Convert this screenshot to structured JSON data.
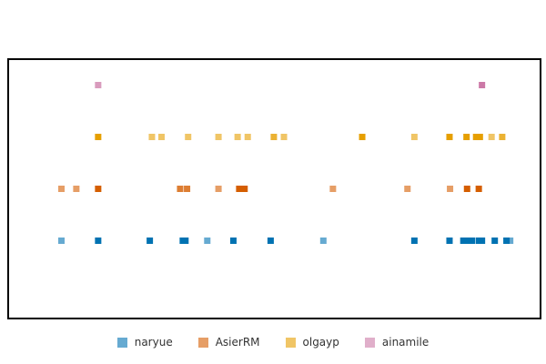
{
  "chart_data": {
    "type": "scatter",
    "title": "",
    "xlabel": "",
    "ylabel": "",
    "grid": false,
    "legend_position": "bottom",
    "marker": "square",
    "xlim": [
      0,
      100
    ],
    "ylim": [
      -0.5,
      4.5
    ],
    "series": [
      {
        "name": "naryue",
        "color": "#0072B2",
        "points": [
          {
            "x": 10.0,
            "y": 1,
            "alpha": 0.6
          },
          {
            "x": 16.9,
            "y": 1,
            "alpha": 1.0
          },
          {
            "x": 26.6,
            "y": 1,
            "alpha": 1.0
          },
          {
            "x": 32.8,
            "y": 1,
            "alpha": 1.0
          },
          {
            "x": 33.3,
            "y": 1,
            "alpha": 1.0
          },
          {
            "x": 37.4,
            "y": 1,
            "alpha": 0.6
          },
          {
            "x": 42.3,
            "y": 1,
            "alpha": 1.0
          },
          {
            "x": 49.3,
            "y": 1,
            "alpha": 1.0
          },
          {
            "x": 59.2,
            "y": 1,
            "alpha": 0.6
          },
          {
            "x": 76.3,
            "y": 1,
            "alpha": 1.0
          },
          {
            "x": 82.9,
            "y": 1,
            "alpha": 1.0
          },
          {
            "x": 85.5,
            "y": 1,
            "alpha": 1.0
          },
          {
            "x": 86.3,
            "y": 1,
            "alpha": 1.0
          },
          {
            "x": 87.1,
            "y": 1,
            "alpha": 1.0
          },
          {
            "x": 88.4,
            "y": 1,
            "alpha": 1.0
          },
          {
            "x": 89.0,
            "y": 1,
            "alpha": 1.0
          },
          {
            "x": 91.4,
            "y": 1,
            "alpha": 1.0
          },
          {
            "x": 93.6,
            "y": 1,
            "alpha": 1.0
          },
          {
            "x": 94.3,
            "y": 1,
            "alpha": 0.6
          }
        ]
      },
      {
        "name": "AsierRM",
        "color": "#D55E00",
        "points": [
          {
            "x": 10.0,
            "y": 2,
            "alpha": 0.6
          },
          {
            "x": 12.8,
            "y": 2,
            "alpha": 0.6
          },
          {
            "x": 16.9,
            "y": 2,
            "alpha": 1.0
          },
          {
            "x": 32.3,
            "y": 2,
            "alpha": 0.8
          },
          {
            "x": 33.6,
            "y": 2,
            "alpha": 0.8
          },
          {
            "x": 39.5,
            "y": 2,
            "alpha": 0.6
          },
          {
            "x": 43.4,
            "y": 2,
            "alpha": 1.0
          },
          {
            "x": 44.4,
            "y": 2,
            "alpha": 1.0
          },
          {
            "x": 61.0,
            "y": 2,
            "alpha": 0.6
          },
          {
            "x": 75.0,
            "y": 2,
            "alpha": 0.6
          },
          {
            "x": 83.0,
            "y": 2,
            "alpha": 0.6
          },
          {
            "x": 86.2,
            "y": 2,
            "alpha": 1.0
          },
          {
            "x": 88.4,
            "y": 2,
            "alpha": 1.0
          }
        ]
      },
      {
        "name": "olgayp",
        "color": "#E69F00",
        "points": [
          {
            "x": 16.9,
            "y": 3,
            "alpha": 1.0
          },
          {
            "x": 27.0,
            "y": 3,
            "alpha": 0.6
          },
          {
            "x": 28.8,
            "y": 3,
            "alpha": 0.6
          },
          {
            "x": 33.8,
            "y": 3,
            "alpha": 0.6
          },
          {
            "x": 39.5,
            "y": 3,
            "alpha": 0.6
          },
          {
            "x": 43.1,
            "y": 3,
            "alpha": 0.6
          },
          {
            "x": 45.0,
            "y": 3,
            "alpha": 0.6
          },
          {
            "x": 49.9,
            "y": 3,
            "alpha": 0.8
          },
          {
            "x": 51.8,
            "y": 3,
            "alpha": 0.6
          },
          {
            "x": 66.5,
            "y": 3,
            "alpha": 1.0
          },
          {
            "x": 76.3,
            "y": 3,
            "alpha": 0.6
          },
          {
            "x": 82.9,
            "y": 3,
            "alpha": 1.0
          },
          {
            "x": 86.1,
            "y": 3,
            "alpha": 1.0
          },
          {
            "x": 87.9,
            "y": 3,
            "alpha": 1.0
          },
          {
            "x": 88.6,
            "y": 3,
            "alpha": 1.0
          },
          {
            "x": 90.8,
            "y": 3,
            "alpha": 0.6
          },
          {
            "x": 92.8,
            "y": 3,
            "alpha": 0.8
          }
        ]
      },
      {
        "name": "ainamile",
        "color": "#CC79A7",
        "points": [
          {
            "x": 16.9,
            "y": 4,
            "alpha": 0.75
          },
          {
            "x": 89.0,
            "y": 4,
            "alpha": 1.0
          }
        ]
      }
    ]
  }
}
